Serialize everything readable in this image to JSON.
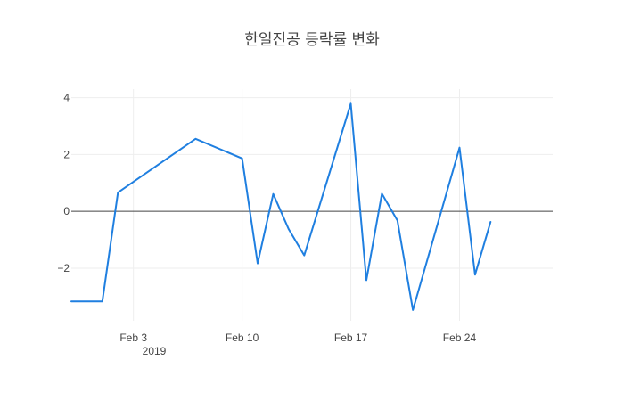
{
  "chart_data": {
    "type": "line",
    "title": "한일진공 등락률 변화",
    "xlabel": "",
    "ylabel": "",
    "x_ticks": [
      "Feb 3",
      "Feb 10",
      "Feb 17",
      "Feb 24"
    ],
    "x_tick_year": "2019",
    "y_ticks": [
      "4",
      "2",
      "0",
      "−2"
    ],
    "xlim": [
      "2019-01-30",
      "2019-03-02"
    ],
    "ylim": [
      -3.85,
      4.3
    ],
    "grid": true,
    "legend": "none",
    "series": [
      {
        "color": "#1f7fe0",
        "x": [
          "2019-01-30",
          "2019-02-01",
          "2019-02-02",
          "2019-02-07",
          "2019-02-10",
          "2019-02-11",
          "2019-02-12",
          "2019-02-13",
          "2019-02-14",
          "2019-02-17",
          "2019-02-18",
          "2019-02-19",
          "2019-02-20",
          "2019-02-21",
          "2019-02-24",
          "2019-02-25",
          "2019-02-26"
        ],
        "y": [
          -3.17,
          -3.17,
          0.66,
          2.55,
          1.86,
          -1.83,
          0.61,
          -0.63,
          -1.55,
          3.79,
          -2.42,
          0.62,
          -0.32,
          -3.47,
          2.24,
          -2.23,
          -0.37
        ]
      }
    ]
  }
}
